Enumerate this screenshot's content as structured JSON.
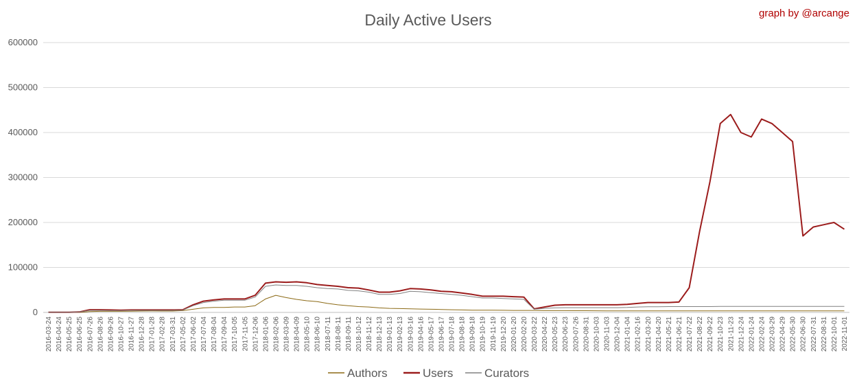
{
  "chart_data": {
    "type": "line",
    "title": "Daily Active Users",
    "credit": "graph by @arcange",
    "xlabel": "",
    "ylabel": "",
    "ylim": [
      0,
      600000
    ],
    "yticks": [
      0,
      100000,
      200000,
      300000,
      400000,
      500000,
      600000
    ],
    "ytick_labels": [
      "0",
      "100000",
      "200000",
      "300000",
      "400000",
      "500000",
      "600000"
    ],
    "grid": true,
    "legend_position": "bottom",
    "xtick_labels": [
      "2016-03-24",
      "2016-04-24",
      "2016-05-25",
      "2016-06-25",
      "2016-07-26",
      "2016-08-26",
      "2016-09-26",
      "2016-10-27",
      "2016-11-27",
      "2016-12-28",
      "2017-01-28",
      "2017-02-28",
      "2017-03-31",
      "2017-05-02",
      "2017-06-02",
      "2017-07-04",
      "2017-08-04",
      "2017-09-04",
      "2017-10-05",
      "2017-11-05",
      "2017-12-06",
      "2018-01-06",
      "2018-02-06",
      "2018-03-09",
      "2018-04-09",
      "2018-05-10",
      "2018-06-10",
      "2018-07-11",
      "2018-08-11",
      "2018-09-11",
      "2018-10-12",
      "2018-11-12",
      "2018-12-13",
      "2019-01-13",
      "2019-02-13",
      "2019-03-16",
      "2019-04-16",
      "2019-05-17",
      "2019-06-17",
      "2019-07-18",
      "2019-08-18",
      "2019-09-18",
      "2019-10-19",
      "2019-11-19",
      "2019-12-20",
      "2020-01-20",
      "2020-02-20",
      "2020-03-22",
      "2020-04-22",
      "2020-05-23",
      "2020-06-23",
      "2020-07-26",
      "2020-08-31",
      "2020-10-03",
      "2020-11-03",
      "2020-12-04",
      "2021-01-04",
      "2021-02-16",
      "2021-03-20",
      "2021-04-20",
      "2021-05-21",
      "2021-06-21",
      "2021-07-22",
      "2021-08-22",
      "2021-09-22",
      "2021-10-23",
      "2021-11-23",
      "2021-12-24",
      "2022-01-24",
      "2022-02-24",
      "2022-03-29",
      "2022-04-29",
      "2022-05-30",
      "2022-06-30",
      "2022-07-31",
      "2022-08-31",
      "2022-10-01",
      "2022-11-01"
    ],
    "series": [
      {
        "name": "Authors",
        "color": "#8b6914",
        "values": [
          0,
          0,
          0,
          0,
          2000,
          2500,
          2500,
          2500,
          2800,
          3000,
          3200,
          3000,
          3000,
          4000,
          7000,
          10000,
          11000,
          11000,
          12000,
          12000,
          15000,
          30000,
          38000,
          33000,
          29000,
          26000,
          24000,
          20000,
          17000,
          15000,
          13000,
          12000,
          10000,
          9000,
          8500,
          8000,
          7500,
          7000,
          6500,
          6000,
          5500,
          5000,
          5000,
          5000,
          4800,
          4500,
          4500,
          4500,
          4000,
          4000,
          4000,
          3800,
          3800,
          3600,
          3500,
          3500,
          3500,
          3500,
          3500,
          3500,
          3500,
          3500,
          3500,
          3500,
          3500,
          3500,
          3500,
          3500,
          3500,
          3500,
          3500,
          3500,
          3500,
          3500,
          3500,
          3500,
          3500,
          3500
        ]
      },
      {
        "name": "Users",
        "color": "#9b1b1b",
        "values": [
          500,
          500,
          500,
          1000,
          6000,
          6000,
          5500,
          5000,
          5500,
          5500,
          5500,
          5500,
          5500,
          6000,
          17000,
          25000,
          28000,
          30000,
          30000,
          30000,
          38000,
          65000,
          68000,
          67000,
          68000,
          66000,
          62000,
          60000,
          58000,
          55000,
          54000,
          50000,
          45000,
          45000,
          48000,
          53000,
          52000,
          50000,
          47000,
          46000,
          43000,
          40000,
          36000,
          36000,
          36000,
          35000,
          34000,
          8000,
          12000,
          16000,
          17000,
          17000,
          17000,
          17000,
          17000,
          17000,
          18000,
          20000,
          22000,
          22000,
          22000,
          23000,
          55000,
          180000,
          290000,
          420000,
          440000,
          400000,
          390000,
          430000,
          420000,
          400000,
          380000,
          170000,
          190000,
          195000,
          200000,
          185000
        ]
      },
      {
        "name": "Curators",
        "color": "#808080",
        "values": [
          500,
          500,
          500,
          1000,
          4500,
          4500,
          4000,
          4000,
          4500,
          4500,
          4500,
          4500,
          4500,
          5000,
          15000,
          22000,
          25000,
          27000,
          27000,
          27000,
          34000,
          58000,
          61000,
          60000,
          60000,
          58000,
          55000,
          53000,
          52000,
          49000,
          48000,
          45000,
          40000,
          40000,
          42000,
          47000,
          46000,
          44000,
          42000,
          40000,
          38000,
          35000,
          32000,
          32000,
          31000,
          30000,
          29000,
          7000,
          9000,
          10000,
          10500,
          10500,
          10500,
          10500,
          10500,
          10500,
          11000,
          12000,
          12500,
          12500,
          13000,
          13000,
          13000,
          13000,
          13000,
          13500,
          13500,
          13500,
          13500,
          13500,
          13500,
          13500,
          13500,
          13500,
          13500,
          13500,
          13500,
          13500
        ]
      }
    ]
  }
}
